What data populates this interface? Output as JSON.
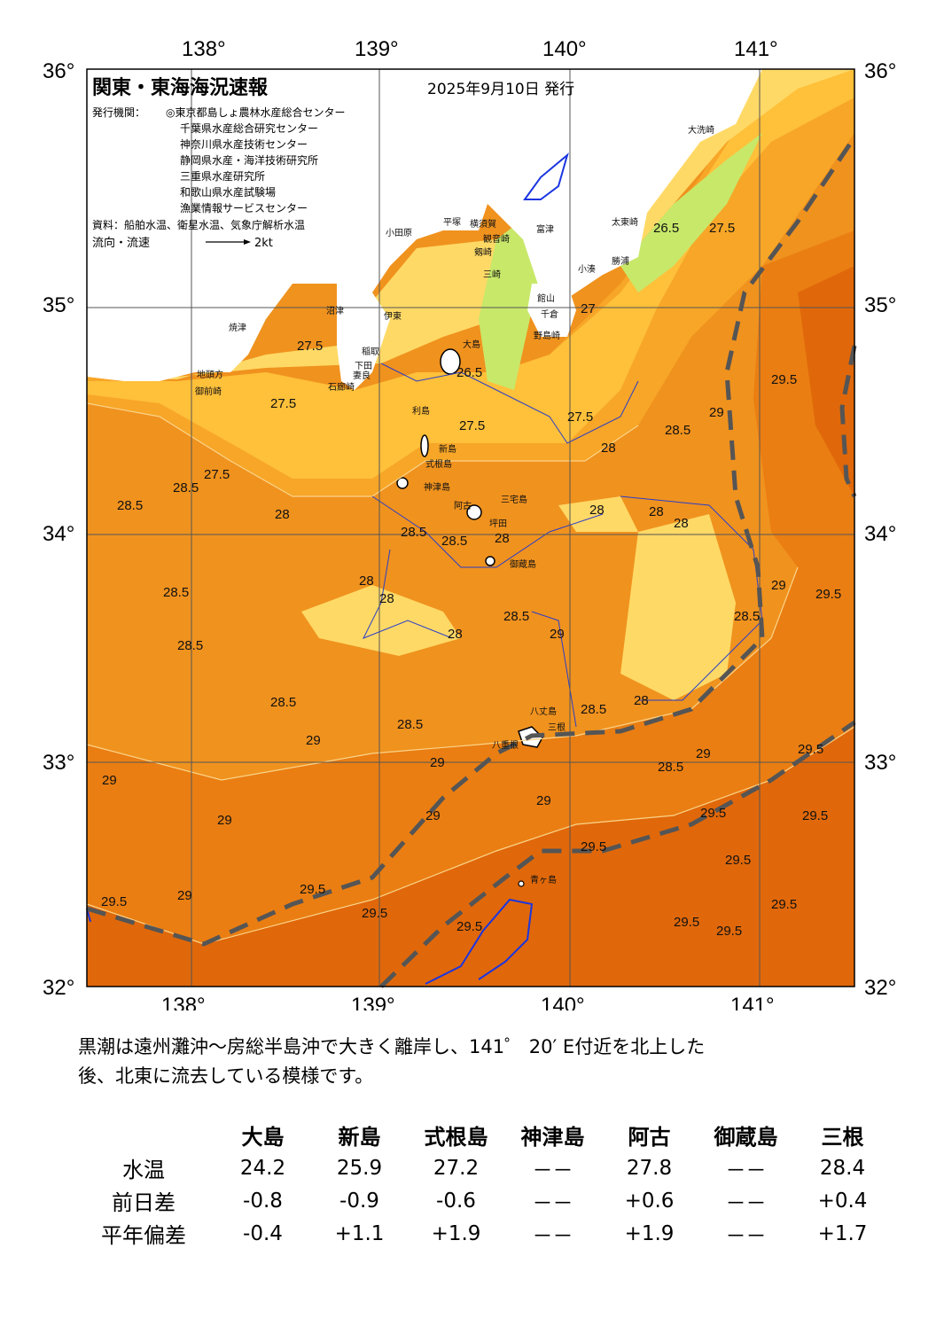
{
  "map": {
    "title": "関東・東海海況速報",
    "date": "2025年9月10日 発行",
    "issuer_label": "発行機関：",
    "issuers": [
      "◎東京都島しょ農林水産総合センター",
      "千葉県水産総合研究センター",
      "神奈川県水産技術センター",
      "静岡県水産・海洋技術研究所",
      "三重県水産研究所",
      "和歌山県水産試験場",
      "漁業情報サービスセンター"
    ],
    "source": "資料：船舶水温、衛星水温、気象庁解析水温",
    "flow_label": "流向・流速",
    "flow_scale": "2kt",
    "lon_labels": [
      "138°",
      "139°",
      "140°",
      "141°"
    ],
    "lat_labels": [
      "36°",
      "35°",
      "34°",
      "33°",
      "32°"
    ],
    "colors": {
      "land": "#ffffff",
      "t_26": "#c8e86a",
      "t_26_5": "#ffd966",
      "t_27": "#ffd24a",
      "t_27_5": "#ffc03a",
      "t_28": "#f7a627",
      "t_28_5": "#f0921e",
      "t_29": "#ea7e12",
      "t_29_5": "#e0680a",
      "kuroshio_axis": "#555555",
      "cold_isotherm": "#1a35e0"
    },
    "contour_labels": [
      "26.5",
      "27",
      "27.5",
      "28",
      "28.5",
      "29",
      "29.5"
    ],
    "places": {
      "oosaka": "大洗崎",
      "taito": "太東崎",
      "katsuura": "勝浦",
      "kominato": "小湊",
      "nojima": "野島崎",
      "chikura": "千倉",
      "tateyama": "館山",
      "futtsu": "富津",
      "kannonzaki": "観音崎",
      "tsurugi": "剱崎",
      "miura": "三崎",
      "jogashima": "城ヶ島",
      "hiratsuka": "平塚",
      "yokosuka": "横須賀",
      "odawara": "小田原",
      "numazu": "沼津",
      "yaizu": "焼津",
      "omaezaki": "御前崎",
      "jitokata": "地頭方",
      "ito": "伊東",
      "inatori": "稲取",
      "shimoda": "下田",
      "mera": "妻良",
      "irozaki": "石廊崎",
      "oshima": "大島",
      "toshima": "利島",
      "niijima": "新島",
      "shikinejima": "式根島",
      "kozushima": "神津島",
      "miyake": "三宅島",
      "ako": "阿古",
      "tsubota": "坪田",
      "mikurajima": "御蔵島",
      "hachijo": "八丈島",
      "hachijo_mine": "三根",
      "hachijo_kaminato": "八重根",
      "aogashima": "青ヶ島"
    }
  },
  "comment": {
    "line1": "黒潮は遠州灘沖～房総半島沖で大きく離岸し、141゜ 20′ E付近を北上した",
    "line2": "後、北東に流去している模様です。"
  },
  "table": {
    "stations": [
      "大島",
      "新島",
      "式根島",
      "神津島",
      "阿古",
      "御蔵島",
      "三根"
    ],
    "rows": [
      {
        "label": "水温",
        "values": [
          "24.2",
          "25.9",
          "27.2",
          "－－",
          "27.8",
          "－－",
          "28.4"
        ]
      },
      {
        "label": "前日差",
        "values": [
          "-0.8",
          "-0.9",
          "-0.6",
          "－－",
          "+0.6",
          "－－",
          "+0.4"
        ]
      },
      {
        "label": "平年偏差",
        "values": [
          "-0.4",
          "+1.1",
          "+1.9",
          "－－",
          "+1.9",
          "－－",
          "+1.7"
        ]
      }
    ]
  }
}
